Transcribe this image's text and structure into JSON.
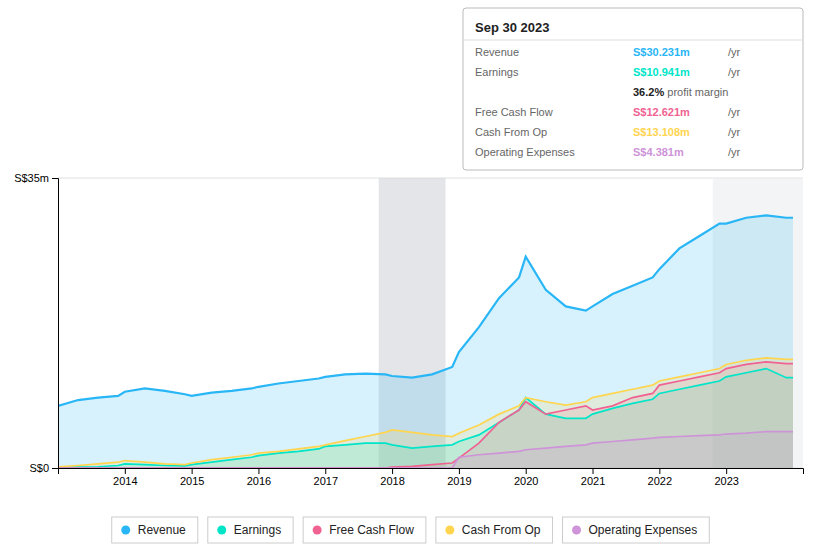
{
  "chart_data": {
    "type": "area",
    "x": [
      2013.0,
      2013.3,
      2013.6,
      2013.9,
      2014.0,
      2014.3,
      2014.6,
      2014.9,
      2015.0,
      2015.3,
      2015.6,
      2015.9,
      2016.0,
      2016.3,
      2016.6,
      2016.9,
      2017.0,
      2017.3,
      2017.6,
      2017.9,
      2018.0,
      2018.3,
      2018.6,
      2018.9,
      2019.0,
      2019.3,
      2019.6,
      2019.9,
      2020.0,
      2020.3,
      2020.6,
      2020.9,
      2021.0,
      2021.3,
      2021.6,
      2021.9,
      2022.0,
      2022.3,
      2022.6,
      2022.9,
      2023.0,
      2023.3,
      2023.6,
      2023.9,
      2024.0
    ],
    "series": [
      {
        "name": "Revenue",
        "color": "#29b6f6",
        "values": [
          7.5,
          8.2,
          8.5,
          8.7,
          9.2,
          9.6,
          9.3,
          8.9,
          8.7,
          9.1,
          9.3,
          9.6,
          9.8,
          10.2,
          10.5,
          10.8,
          11.0,
          11.3,
          11.4,
          11.3,
          11.1,
          10.9,
          11.3,
          12.2,
          14.0,
          17.0,
          20.5,
          23.0,
          25.5,
          21.5,
          19.5,
          19.0,
          19.5,
          21.0,
          22.0,
          23.0,
          24.0,
          26.5,
          28.0,
          29.5,
          29.5,
          30.2,
          30.5,
          30.2,
          30.2
        ]
      },
      {
        "name": "Earnings",
        "color": "#00e5c8",
        "values": [
          0.05,
          0.1,
          0.15,
          0.3,
          0.5,
          0.4,
          0.3,
          0.25,
          0.4,
          0.7,
          1.0,
          1.3,
          1.5,
          1.8,
          2.0,
          2.3,
          2.6,
          2.8,
          3.0,
          3.0,
          2.8,
          2.4,
          2.6,
          2.8,
          3.2,
          4.0,
          5.5,
          7.0,
          8.5,
          6.5,
          6.0,
          6.0,
          6.5,
          7.2,
          7.8,
          8.3,
          9.0,
          9.5,
          10.0,
          10.5,
          11.0,
          11.5,
          12.0,
          10.9,
          10.9
        ]
      },
      {
        "name": "Free Cash Flow",
        "color": "#f06292",
        "values": [
          0.0,
          0.0,
          0.0,
          0.0,
          0.0,
          0.0,
          0.0,
          0.0,
          0.0,
          0.0,
          0.0,
          0.0,
          0.0,
          0.0,
          0.0,
          0.0,
          0.0,
          0.0,
          0.0,
          0.0,
          0.1,
          0.2,
          0.4,
          0.6,
          1.2,
          3.0,
          5.5,
          7.0,
          8.0,
          6.5,
          7.0,
          7.5,
          7.0,
          7.5,
          8.5,
          9.0,
          10.0,
          10.5,
          11.0,
          11.5,
          12.0,
          12.5,
          12.8,
          12.6,
          12.6
        ]
      },
      {
        "name": "Cash From Op",
        "color": "#ffd54f",
        "values": [
          0.15,
          0.3,
          0.5,
          0.7,
          0.9,
          0.7,
          0.5,
          0.4,
          0.6,
          1.0,
          1.3,
          1.6,
          1.8,
          2.0,
          2.3,
          2.6,
          2.8,
          3.3,
          3.8,
          4.3,
          4.6,
          4.3,
          4.0,
          3.8,
          4.2,
          5.2,
          6.5,
          7.5,
          8.5,
          8.0,
          7.6,
          8.0,
          8.5,
          9.0,
          9.5,
          10.0,
          10.5,
          11.0,
          11.5,
          12.0,
          12.5,
          13.0,
          13.3,
          13.1,
          13.1
        ]
      },
      {
        "name": "Operating Expenses",
        "color": "#ce93d8",
        "values": [
          0.0,
          0.0,
          0.0,
          0.0,
          0.0,
          0.0,
          0.0,
          0.0,
          0.0,
          0.0,
          0.0,
          0.0,
          0.0,
          0.0,
          0.0,
          0.0,
          0.0,
          0.0,
          0.0,
          0.0,
          0.0,
          0.0,
          0.0,
          0.0,
          1.3,
          1.6,
          1.8,
          2.0,
          2.2,
          2.4,
          2.6,
          2.8,
          3.0,
          3.2,
          3.4,
          3.6,
          3.7,
          3.8,
          3.9,
          4.0,
          4.1,
          4.2,
          4.4,
          4.4,
          4.4
        ]
      }
    ],
    "xlim": [
      2013.0,
      2024.15
    ],
    "xticks": [
      2014,
      2015,
      2016,
      2017,
      2018,
      2019,
      2020,
      2021,
      2022,
      2023
    ],
    "ylim": [
      0,
      35
    ],
    "yticks": [
      {
        "value": 0,
        "label": "S$0"
      },
      {
        "value": 35,
        "label": "S$35m"
      }
    ],
    "grid": true,
    "legend": "bottom",
    "bands": [
      [
        2017.8,
        2018.8
      ],
      [
        2022.8,
        2024.15
      ]
    ],
    "annotations": [
      [
        "Sep 30 2023"
      ],
      [
        "Revenue",
        "S$30.231m",
        " /yr"
      ],
      [
        "Earnings",
        "S$10.941m",
        " /yr"
      ],
      [
        "36.2%",
        " profit margin"
      ],
      [
        "Free Cash Flow",
        "S$12.621m",
        " /yr"
      ],
      [
        "Cash From Op",
        "S$13.108m",
        " /yr"
      ],
      [
        "Operating Expenses",
        "S$4.381m",
        " /yr"
      ]
    ]
  }
}
